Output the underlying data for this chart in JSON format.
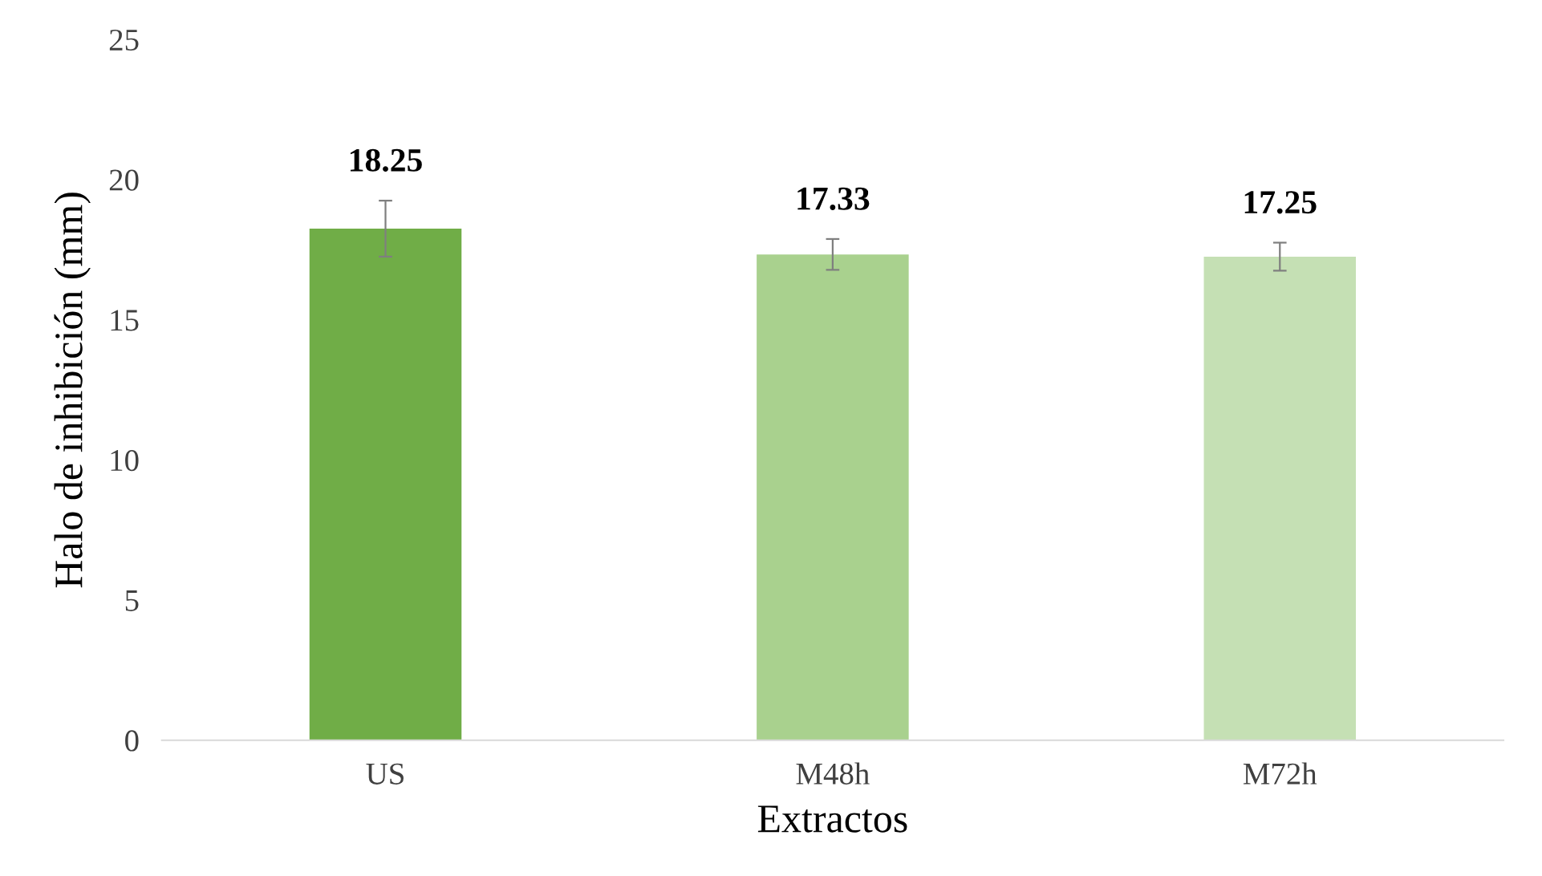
{
  "chart_data": {
    "type": "bar",
    "xlabel": "Extractos",
    "ylabel": "Halo de inhibición (mm)",
    "categories": [
      "US",
      "M48h",
      "M72h"
    ],
    "values": [
      18.25,
      17.33,
      17.25
    ],
    "errors": [
      1.0,
      0.55,
      0.5
    ],
    "colors": [
      "#70ad47",
      "#a9d18e",
      "#c5e0b4"
    ],
    "data_labels": true,
    "ylim": [
      0,
      25
    ],
    "yticks": [
      0,
      5,
      10,
      15,
      20,
      25
    ],
    "grid": false
  }
}
